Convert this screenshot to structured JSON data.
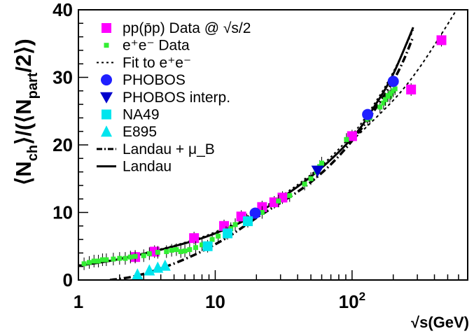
{
  "chart_data": {
    "type": "scatter",
    "x_scale": "log",
    "x_range": [
      1,
      700
    ],
    "y_range": [
      0,
      40
    ],
    "grid": false,
    "legend_position": "top-left",
    "xlabel": "√s(GeV)",
    "ylabel": "⟨N_ch⟩/(⟨N_part⟩/2)",
    "ylabel_parts": {
      "open": "⟨N",
      "sub1": "ch",
      "mid": "⟩/(⟨N",
      "sub2": "part",
      "close": "/2⟩)"
    },
    "x_ticks": [
      {
        "value": 1,
        "label": "1"
      },
      {
        "value": 10,
        "label": "10"
      },
      {
        "value": 100,
        "label": "10",
        "sup": "2"
      }
    ],
    "y_ticks": [
      {
        "value": 0,
        "label": "0"
      },
      {
        "value": 10,
        "label": "10"
      },
      {
        "value": 20,
        "label": "20"
      },
      {
        "value": 30,
        "label": "30"
      },
      {
        "value": 40,
        "label": "40"
      }
    ],
    "legend": [
      {
        "key": "pp",
        "label": "pp(p̄p) Data @ √s/2",
        "marker": "square",
        "color": "#ff00ff"
      },
      {
        "key": "ee",
        "label": "e⁺e⁻ Data",
        "marker": "small-square",
        "color": "#33ee33"
      },
      {
        "key": "fit",
        "label": "Fit to e⁺e⁻",
        "marker": "dotted-line",
        "color": "#000000"
      },
      {
        "key": "phobos",
        "label": "PHOBOS",
        "marker": "circle",
        "color": "#1f1fff"
      },
      {
        "key": "phobos_interp",
        "label": "PHOBOS interp.",
        "marker": "triangle-down",
        "color": "#0000cc"
      },
      {
        "key": "na49",
        "label": "NA49",
        "marker": "square",
        "color": "#00e5ee"
      },
      {
        "key": "e895",
        "label": "E895",
        "marker": "triangle-up",
        "color": "#00e5ee"
      },
      {
        "key": "landau_mub",
        "label": "Landau + μ_B",
        "marker": "dashdot-line",
        "color": "#000000"
      },
      {
        "key": "landau",
        "label": "Landau",
        "marker": "solid-line",
        "color": "#000000"
      }
    ],
    "series": [
      {
        "key": "pp",
        "marker": "square",
        "color": "#ff00ff",
        "points": [
          [
            2.6,
            3.4
          ],
          [
            3.6,
            4.2
          ],
          [
            7.0,
            6.2
          ],
          [
            11.6,
            8.0
          ],
          [
            15.5,
            9.4
          ],
          [
            22,
            10.8
          ],
          [
            27,
            11.5
          ],
          [
            31,
            12.2
          ],
          [
            100,
            21.3
          ],
          [
            270,
            28.2
          ],
          [
            450,
            35.5
          ]
        ]
      },
      {
        "key": "ee",
        "marker": "small-square",
        "color": "#33ee33",
        "points": [
          [
            1.1,
            2.4
          ],
          [
            1.2,
            2.6
          ],
          [
            1.3,
            2.8
          ],
          [
            1.4,
            2.8
          ],
          [
            1.5,
            3.0
          ],
          [
            1.6,
            3.0
          ],
          [
            1.8,
            3.1
          ],
          [
            2.0,
            3.2
          ],
          [
            2.2,
            3.2
          ],
          [
            2.4,
            3.4
          ],
          [
            2.6,
            3.5
          ],
          [
            3.0,
            3.6
          ],
          [
            3.3,
            3.9
          ],
          [
            3.8,
            4.1
          ],
          [
            4.4,
            4.2
          ],
          [
            4.8,
            4.4
          ],
          [
            5.2,
            4.5
          ],
          [
            5.6,
            4.2
          ],
          [
            6.0,
            4.3
          ],
          [
            6.5,
            4.5
          ],
          [
            7.2,
            4.8
          ],
          [
            8.0,
            5.2
          ],
          [
            9.5,
            6.0
          ],
          [
            10.5,
            6.5
          ],
          [
            12,
            7.0
          ],
          [
            13,
            7.6
          ],
          [
            14,
            8.2
          ],
          [
            17,
            8.9
          ],
          [
            22,
            10.0
          ],
          [
            29,
            11.7
          ],
          [
            35,
            12.5
          ],
          [
            45,
            14.2
          ],
          [
            50,
            15.0
          ],
          [
            55,
            16.0
          ],
          [
            58,
            16.8
          ],
          [
            60,
            17.3
          ],
          [
            91,
            20.8
          ],
          [
            130,
            23.8
          ],
          [
            133,
            24.3
          ],
          [
            135,
            24.0
          ],
          [
            160,
            25.6
          ],
          [
            170,
            26.2
          ],
          [
            175,
            26.7
          ],
          [
            183,
            27.3
          ],
          [
            189,
            27.2
          ],
          [
            192,
            27.6
          ],
          [
            200,
            28.0
          ],
          [
            206,
            28.3
          ]
        ]
      },
      {
        "key": "phobos",
        "marker": "circle",
        "color": "#1f1fff",
        "points": [
          [
            19.6,
            9.9
          ],
          [
            130,
            24.5
          ],
          [
            200,
            29.4
          ]
        ]
      },
      {
        "key": "phobos_interp",
        "marker": "triangle-down",
        "color": "#0000cc",
        "points": [
          [
            56,
            16.2
          ]
        ]
      },
      {
        "key": "na49",
        "marker": "square",
        "color": "#00e5ee",
        "points": [
          [
            8.8,
            5.0
          ],
          [
            12.3,
            6.9
          ],
          [
            17.3,
            8.7
          ]
        ]
      },
      {
        "key": "e895",
        "marker": "triangle-up",
        "color": "#00e5ee",
        "points": [
          [
            2.7,
            0.8
          ],
          [
            3.3,
            1.4
          ],
          [
            3.8,
            1.8
          ],
          [
            4.3,
            2.1
          ]
        ]
      }
    ],
    "curves": [
      {
        "key": "landau",
        "style": "solid",
        "color": "#000000",
        "points": [
          [
            1,
            2.1
          ],
          [
            2,
            3.1
          ],
          [
            5,
            5.0
          ],
          [
            10,
            6.9
          ],
          [
            20,
            9.8
          ],
          [
            50,
            15.3
          ],
          [
            100,
            21.0
          ],
          [
            150,
            26.1
          ],
          [
            200,
            30.5
          ],
          [
            280,
            37.4
          ]
        ]
      },
      {
        "key": "fit",
        "style": "dotted",
        "color": "#000000",
        "points": [
          [
            1,
            2.2
          ],
          [
            2,
            3.2
          ],
          [
            5,
            5.1
          ],
          [
            10,
            7.1
          ],
          [
            20,
            10.1
          ],
          [
            50,
            15.6
          ],
          [
            100,
            21.5
          ],
          [
            150,
            26.5
          ],
          [
            200,
            30.8
          ],
          [
            280,
            37.0
          ]
        ]
      },
      {
        "key": "landau_mub",
        "style": "dashdot",
        "color": "#000000",
        "points": [
          [
            1.7,
            0.0
          ],
          [
            2.5,
            0.5
          ],
          [
            4,
            1.7
          ],
          [
            7,
            3.7
          ],
          [
            12,
            6.2
          ],
          [
            20,
            9.2
          ],
          [
            50,
            14.5
          ],
          [
            100,
            20.6
          ],
          [
            200,
            29.5
          ],
          [
            280,
            36.0
          ]
        ]
      },
      {
        "key": "dashed_long",
        "style": "dashed",
        "color": "#000000",
        "points": [
          [
            100,
            20.6
          ],
          [
            200,
            26.6
          ],
          [
            300,
            31.0
          ],
          [
            450,
            36.4
          ],
          [
            580,
            40.0
          ]
        ]
      }
    ]
  }
}
